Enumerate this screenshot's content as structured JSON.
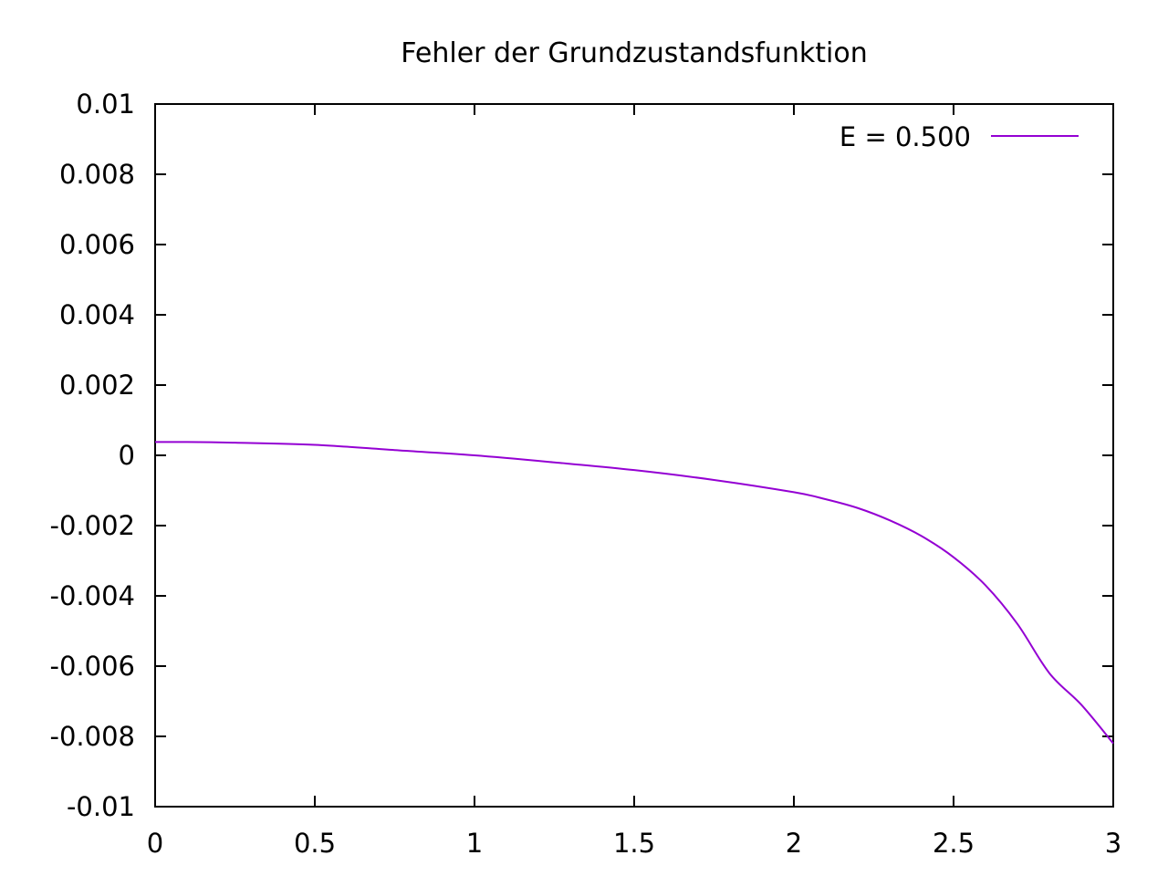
{
  "chart_data": {
    "type": "line",
    "title": "Fehler der Grundzustandsfunktion",
    "xlabel": "",
    "ylabel": "",
    "xlim": [
      0,
      3
    ],
    "ylim": [
      -0.01,
      0.01
    ],
    "x_ticks": [
      "0",
      "0.5",
      "1",
      "1.5",
      "2",
      "2.5",
      "3"
    ],
    "y_ticks": [
      "0.01",
      "0.008",
      "0.006",
      "0.004",
      "0.002",
      "0",
      "-0.002",
      "-0.004",
      "-0.006",
      "-0.008",
      "-0.01"
    ],
    "grid": false,
    "legend_position": "top-right",
    "series": [
      {
        "name": "E = 0.500",
        "color": "#9400d3",
        "x": [
          0,
          0.1,
          0.25,
          0.5,
          0.75,
          1.0,
          1.25,
          1.5,
          1.75,
          2.0,
          2.1,
          2.2,
          2.3,
          2.4,
          2.5,
          2.6,
          2.7,
          2.8,
          2.9,
          3.0
        ],
        "y": [
          0.00038,
          0.00038,
          0.00036,
          0.0003,
          0.00015,
          0.0,
          -0.0002,
          -0.00042,
          -0.0007,
          -0.00105,
          -0.00125,
          -0.0015,
          -0.00185,
          -0.0023,
          -0.0029,
          -0.0037,
          -0.0048,
          -0.0062,
          -0.0071,
          -0.0082
        ]
      }
    ]
  }
}
